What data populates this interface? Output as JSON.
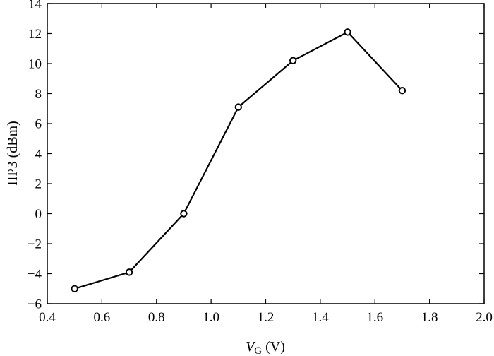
{
  "chart_data": {
    "type": "line",
    "title": "",
    "xlabel": {
      "symbol": "V",
      "subscript": "G",
      "unit": " (V)"
    },
    "ylabel": "IIP3 (dBm)",
    "xlim": [
      0.4,
      2.0
    ],
    "ylim": [
      -6,
      14
    ],
    "xticks": [
      "0.4",
      "0.6",
      "0.8",
      "1.0",
      "1.2",
      "1.4",
      "1.6",
      "1.8",
      "2.0"
    ],
    "yticks": [
      "−6",
      "−4",
      "−2",
      "0",
      "2",
      "4",
      "6",
      "8",
      "10",
      "12",
      "14"
    ],
    "grid": false,
    "legend": "none",
    "series": [
      {
        "marker": "open-circle",
        "color": "#000000",
        "x": [
          0.5,
          0.7,
          0.9,
          1.1,
          1.3,
          1.5,
          1.7
        ],
        "y": [
          -5.0,
          -3.9,
          0.0,
          7.1,
          10.2,
          12.1,
          8.2
        ]
      }
    ]
  }
}
